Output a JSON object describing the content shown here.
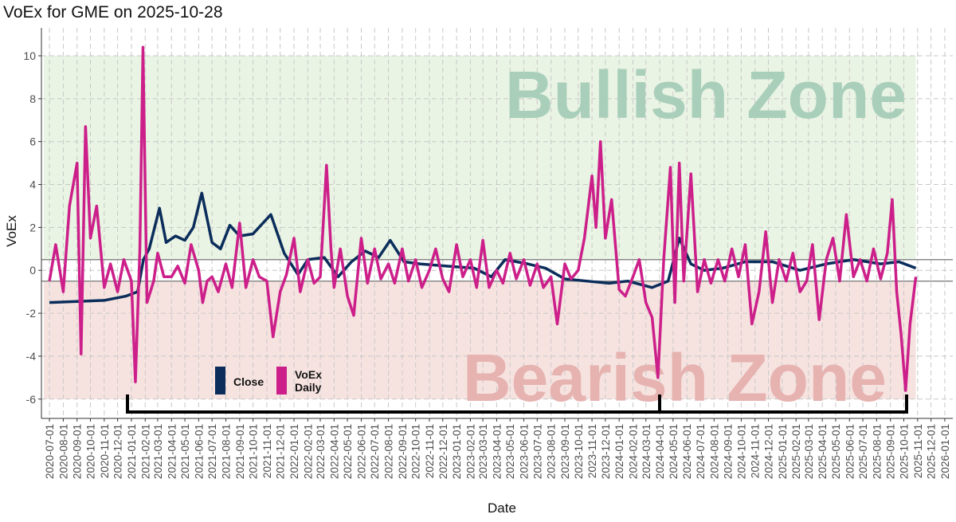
{
  "chart_data": {
    "type": "line",
    "title": "VoEx for GME on 2025-10-28",
    "x_label": "Date",
    "y_label": "VoEx",
    "xlim": [
      "2020-06-13",
      "2026-01-19"
    ],
    "ylim": [
      -6.9,
      11.3
    ],
    "yticks": [
      -6,
      -4,
      -2,
      0,
      2,
      4,
      6,
      8,
      10
    ],
    "xticks": [
      "2020-07-01",
      "2020-08-01",
      "2020-09-01",
      "2020-10-01",
      "2020-11-01",
      "2020-12-01",
      "2021-01-01",
      "2021-02-01",
      "2021-03-01",
      "2021-04-01",
      "2021-05-01",
      "2021-06-01",
      "2021-07-01",
      "2021-08-01",
      "2021-09-01",
      "2021-10-01",
      "2021-11-01",
      "2021-12-01",
      "2022-01-01",
      "2022-02-01",
      "2022-03-01",
      "2022-04-01",
      "2022-05-01",
      "2022-06-01",
      "2022-07-01",
      "2022-08-01",
      "2022-09-01",
      "2022-10-01",
      "2022-11-01",
      "2022-12-01",
      "2023-01-01",
      "2023-02-01",
      "2023-03-01",
      "2023-04-01",
      "2023-05-01",
      "2023-06-01",
      "2023-07-01",
      "2023-08-01",
      "2023-09-01",
      "2023-10-01",
      "2023-11-01",
      "2023-12-01",
      "2024-01-01",
      "2024-02-01",
      "2024-03-01",
      "2024-04-01",
      "2024-05-01",
      "2024-06-01",
      "2024-07-01",
      "2024-08-01",
      "2024-09-01",
      "2024-10-01",
      "2024-11-01",
      "2024-12-01",
      "2025-01-01",
      "2025-02-01",
      "2025-03-01",
      "2025-04-01",
      "2025-05-01",
      "2025-06-01",
      "2025-07-01",
      "2025-08-01",
      "2025-09-01",
      "2025-10-01",
      "2025-11-01",
      "2025-12-01",
      "2026-01-01"
    ],
    "grid": true,
    "zones": [
      {
        "label": "Bullish Zone",
        "color": "#eaf4e4",
        "text_color": "#a9cfbb",
        "range": [
          0.5,
          10
        ]
      },
      {
        "label": "Bearish Zone",
        "color": "#f6e3e0",
        "text_color": "#e6b3b1",
        "range": [
          -6,
          -0.5
        ]
      }
    ],
    "hlines": [
      0.5,
      -0.5
    ],
    "series": [
      {
        "name": "Close",
        "color": "#0b2d5b",
        "x": [
          "2020-07-01",
          "2020-09-01",
          "2020-11-01",
          "2020-12-20",
          "2021-01-15",
          "2021-01-28",
          "2021-02-10",
          "2021-03-05",
          "2021-03-20",
          "2021-04-10",
          "2021-05-01",
          "2021-05-20",
          "2021-06-08",
          "2021-07-01",
          "2021-07-20",
          "2021-08-10",
          "2021-09-01",
          "2021-10-01",
          "2021-11-10",
          "2021-12-10",
          "2022-01-10",
          "2022-02-01",
          "2022-03-10",
          "2022-04-10",
          "2022-05-10",
          "2022-06-10",
          "2022-07-10",
          "2022-08-05",
          "2022-09-05",
          "2022-10-10",
          "2022-12-10",
          "2023-02-10",
          "2023-03-20",
          "2023-04-20",
          "2023-06-10",
          "2023-07-20",
          "2023-09-01",
          "2023-10-20",
          "2023-12-10",
          "2024-01-20",
          "2024-03-15",
          "2024-04-20",
          "2024-05-15",
          "2024-06-10",
          "2024-07-10",
          "2024-08-20",
          "2024-10-10",
          "2024-12-10",
          "2025-02-10",
          "2025-04-10",
          "2025-06-10",
          "2025-08-10",
          "2025-09-20",
          "2025-10-28"
        ],
        "values": [
          -1.5,
          -1.45,
          -1.4,
          -1.2,
          -1.0,
          0.5,
          1.0,
          2.9,
          1.3,
          1.6,
          1.4,
          2.0,
          3.6,
          1.3,
          1.0,
          2.1,
          1.6,
          1.7,
          2.6,
          0.8,
          -0.2,
          0.5,
          0.6,
          -0.3,
          0.4,
          0.9,
          0.6,
          1.4,
          0.4,
          0.3,
          0.2,
          0.1,
          -0.3,
          0.5,
          0.3,
          0.1,
          -0.4,
          -0.5,
          -0.6,
          -0.5,
          -0.8,
          -0.5,
          1.5,
          0.3,
          0.0,
          0.1,
          0.4,
          0.4,
          0.0,
          0.3,
          0.5,
          0.3,
          0.4,
          0.1
        ]
      },
      {
        "name": "VoEx Daily",
        "color": "#cc1f8a",
        "x": [
          "2020-07-01",
          "2020-07-15",
          "2020-08-01",
          "2020-08-15",
          "2020-09-01",
          "2020-09-10",
          "2020-09-20",
          "2020-10-01",
          "2020-10-15",
          "2020-11-01",
          "2020-11-15",
          "2020-12-01",
          "2020-12-15",
          "2021-01-01",
          "2021-01-10",
          "2021-01-20",
          "2021-01-27",
          "2021-02-05",
          "2021-02-20",
          "2021-03-01",
          "2021-03-15",
          "2021-04-01",
          "2021-04-15",
          "2021-05-01",
          "2021-05-15",
          "2021-06-01",
          "2021-06-10",
          "2021-06-20",
          "2021-07-01",
          "2021-07-15",
          "2021-08-01",
          "2021-08-15",
          "2021-09-01",
          "2021-09-15",
          "2021-10-01",
          "2021-10-15",
          "2021-11-01",
          "2021-11-15",
          "2021-12-01",
          "2021-12-15",
          "2022-01-01",
          "2022-01-15",
          "2022-02-01",
          "2022-02-15",
          "2022-03-01",
          "2022-03-15",
          "2022-03-25",
          "2022-04-01",
          "2022-04-15",
          "2022-05-01",
          "2022-05-15",
          "2022-06-01",
          "2022-06-15",
          "2022-07-01",
          "2022-07-15",
          "2022-08-01",
          "2022-08-15",
          "2022-09-01",
          "2022-09-15",
          "2022-10-01",
          "2022-10-15",
          "2022-11-01",
          "2022-11-15",
          "2022-12-01",
          "2022-12-15",
          "2023-01-01",
          "2023-01-15",
          "2023-02-01",
          "2023-02-15",
          "2023-03-01",
          "2023-03-15",
          "2023-04-01",
          "2023-04-15",
          "2023-05-01",
          "2023-05-15",
          "2023-06-01",
          "2023-06-15",
          "2023-07-01",
          "2023-07-15",
          "2023-08-01",
          "2023-08-15",
          "2023-09-01",
          "2023-09-15",
          "2023-10-01",
          "2023-10-15",
          "2023-11-01",
          "2023-11-10",
          "2023-11-20",
          "2023-12-01",
          "2023-12-15",
          "2024-01-01",
          "2024-01-15",
          "2024-02-01",
          "2024-02-15",
          "2024-03-01",
          "2024-03-15",
          "2024-03-28",
          "2024-04-10",
          "2024-04-25",
          "2024-05-05",
          "2024-05-15",
          "2024-05-25",
          "2024-06-10",
          "2024-06-25",
          "2024-07-10",
          "2024-07-25",
          "2024-08-10",
          "2024-08-25",
          "2024-09-10",
          "2024-09-25",
          "2024-10-10",
          "2024-10-25",
          "2024-11-10",
          "2024-11-25",
          "2024-12-10",
          "2024-12-25",
          "2025-01-10",
          "2025-01-25",
          "2025-02-10",
          "2025-02-25",
          "2025-03-10",
          "2025-03-25",
          "2025-04-10",
          "2025-04-25",
          "2025-05-10",
          "2025-05-25",
          "2025-06-10",
          "2025-06-25",
          "2025-07-10",
          "2025-07-25",
          "2025-08-10",
          "2025-08-25",
          "2025-09-05",
          "2025-09-15",
          "2025-09-25",
          "2025-10-05",
          "2025-10-15",
          "2025-10-28"
        ],
        "values": [
          -0.5,
          1.2,
          -1.0,
          3.0,
          5.0,
          -3.9,
          6.7,
          1.5,
          3.0,
          -0.8,
          0.3,
          -1.0,
          0.5,
          -0.5,
          -5.2,
          1.0,
          10.4,
          -1.5,
          -0.5,
          0.8,
          -0.3,
          -0.3,
          0.2,
          -0.6,
          1.2,
          0.0,
          -1.5,
          -0.5,
          -0.3,
          -1.0,
          0.3,
          -0.8,
          2.2,
          -0.8,
          0.5,
          -0.3,
          -0.5,
          -3.1,
          -1.0,
          -0.2,
          1.5,
          -1.0,
          0.5,
          -0.6,
          -0.3,
          4.9,
          1.0,
          -0.8,
          1.0,
          -1.2,
          -2.1,
          1.5,
          -0.6,
          1.0,
          -0.4,
          0.3,
          -0.6,
          1.0,
          -0.5,
          0.5,
          -0.8,
          0.0,
          1.0,
          -0.4,
          -1.0,
          1.2,
          -0.3,
          0.5,
          -0.8,
          1.4,
          -0.8,
          0.0,
          -0.6,
          0.8,
          -0.4,
          0.5,
          -0.7,
          0.3,
          -0.8,
          -0.3,
          -2.5,
          0.3,
          -0.4,
          0.0,
          1.5,
          4.4,
          2.0,
          6.0,
          1.5,
          3.3,
          -0.9,
          -1.2,
          -0.3,
          0.5,
          -1.5,
          -2.2,
          -5.0,
          0.5,
          4.8,
          -1.5,
          5.0,
          -0.5,
          4.5,
          -1.0,
          0.5,
          -0.6,
          0.5,
          -0.5,
          1.0,
          -0.3,
          1.2,
          -2.5,
          -1.0,
          1.8,
          -1.5,
          0.5,
          -0.5,
          0.8,
          -1.0,
          -0.5,
          1.2,
          -2.3,
          0.5,
          1.5,
          -0.5,
          2.6,
          -0.3,
          0.5,
          -0.5,
          1.0,
          -0.4,
          0.8,
          3.3,
          -1.0,
          -3.0,
          -5.6,
          -2.5,
          -0.3
        ]
      }
    ]
  }
}
